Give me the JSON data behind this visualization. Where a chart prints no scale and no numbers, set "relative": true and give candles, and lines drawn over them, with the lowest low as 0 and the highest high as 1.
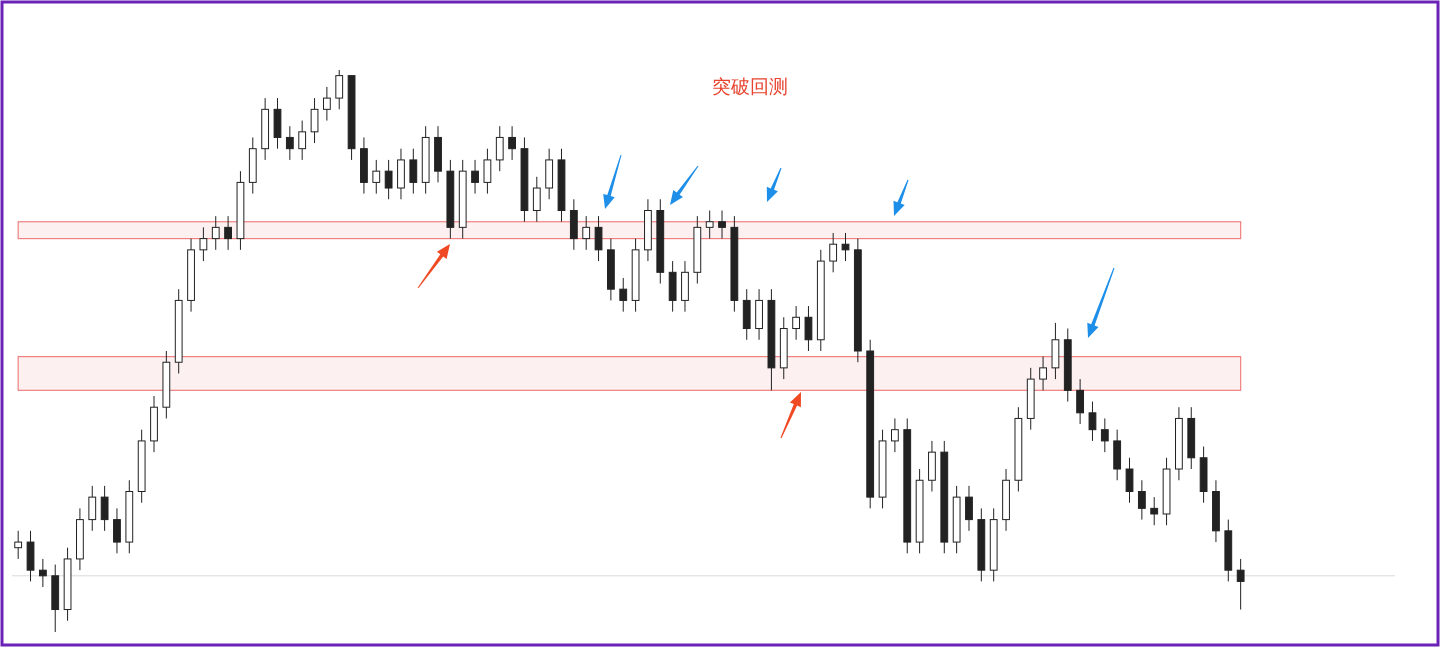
{
  "chart_data": {
    "type": "candlestick",
    "title": "突破回测",
    "relative": true,
    "categories": [
      null,
      null,
      null,
      null,
      null,
      null,
      null,
      null,
      null,
      null,
      null,
      null,
      null,
      null,
      null,
      null,
      null,
      null,
      null,
      null,
      null,
      null,
      null,
      null,
      null,
      null,
      null,
      null,
      null,
      null,
      null,
      null,
      null,
      null,
      null,
      null,
      null,
      null,
      null,
      null,
      null,
      null,
      null,
      null,
      null,
      null,
      null,
      null,
      null,
      null,
      null,
      null,
      null,
      null,
      null,
      null,
      null,
      null,
      null,
      null,
      null,
      null,
      null,
      null,
      null,
      null,
      null,
      null,
      null,
      null,
      null,
      null,
      null,
      null,
      null,
      null,
      null,
      null,
      null,
      null,
      null,
      null,
      null,
      null,
      null,
      null,
      null,
      null,
      null,
      null,
      null,
      null,
      null,
      null,
      null,
      null,
      null,
      null,
      null,
      null
    ],
    "ohlc": [
      [
        0.15,
        0.18,
        0.13,
        0.16
      ],
      [
        0.16,
        0.18,
        0.09,
        0.11
      ],
      [
        0.11,
        0.13,
        0.08,
        0.1
      ],
      [
        0.1,
        0.12,
        0.0,
        0.04
      ],
      [
        0.04,
        0.15,
        0.02,
        0.13
      ],
      [
        0.13,
        0.22,
        0.11,
        0.2
      ],
      [
        0.2,
        0.26,
        0.18,
        0.24
      ],
      [
        0.24,
        0.26,
        0.18,
        0.2
      ],
      [
        0.2,
        0.22,
        0.14,
        0.16
      ],
      [
        0.16,
        0.27,
        0.14,
        0.25
      ],
      [
        0.25,
        0.36,
        0.23,
        0.34
      ],
      [
        0.34,
        0.42,
        0.32,
        0.4
      ],
      [
        0.4,
        0.5,
        0.38,
        0.48
      ],
      [
        0.48,
        0.61,
        0.46,
        0.59
      ],
      [
        0.59,
        0.7,
        0.57,
        0.68
      ],
      [
        0.68,
        0.72,
        0.66,
        0.7
      ],
      [
        0.7,
        0.74,
        0.68,
        0.72
      ],
      [
        0.72,
        0.74,
        0.68,
        0.7
      ],
      [
        0.7,
        0.82,
        0.68,
        0.8
      ],
      [
        0.8,
        0.88,
        0.78,
        0.86
      ],
      [
        0.86,
        0.95,
        0.84,
        0.93
      ],
      [
        0.93,
        0.95,
        0.86,
        0.88
      ],
      [
        0.88,
        0.9,
        0.84,
        0.86
      ],
      [
        0.86,
        0.91,
        0.84,
        0.89
      ],
      [
        0.89,
        0.95,
        0.87,
        0.93
      ],
      [
        0.93,
        0.97,
        0.91,
        0.95
      ],
      [
        0.95,
        1.0,
        0.93,
        0.99
      ],
      [
        0.99,
        0.99,
        0.84,
        0.86
      ],
      [
        0.86,
        0.88,
        0.78,
        0.8
      ],
      [
        0.8,
        0.84,
        0.78,
        0.82
      ],
      [
        0.82,
        0.84,
        0.77,
        0.79
      ],
      [
        0.79,
        0.86,
        0.77,
        0.84
      ],
      [
        0.84,
        0.86,
        0.78,
        0.8
      ],
      [
        0.8,
        0.9,
        0.78,
        0.88
      ],
      [
        0.88,
        0.9,
        0.8,
        0.82
      ],
      [
        0.82,
        0.84,
        0.7,
        0.72
      ],
      [
        0.72,
        0.84,
        0.7,
        0.82
      ],
      [
        0.82,
        0.84,
        0.78,
        0.8
      ],
      [
        0.8,
        0.86,
        0.78,
        0.84
      ],
      [
        0.84,
        0.9,
        0.82,
        0.88
      ],
      [
        0.88,
        0.9,
        0.84,
        0.86
      ],
      [
        0.86,
        0.88,
        0.73,
        0.75
      ],
      [
        0.75,
        0.81,
        0.73,
        0.79
      ],
      [
        0.79,
        0.86,
        0.77,
        0.84
      ],
      [
        0.84,
        0.86,
        0.73,
        0.75
      ],
      [
        0.75,
        0.77,
        0.68,
        0.7
      ],
      [
        0.7,
        0.74,
        0.68,
        0.72
      ],
      [
        0.72,
        0.74,
        0.66,
        0.68
      ],
      [
        0.68,
        0.7,
        0.59,
        0.61
      ],
      [
        0.61,
        0.63,
        0.57,
        0.59
      ],
      [
        0.59,
        0.7,
        0.57,
        0.68
      ],
      [
        0.68,
        0.77,
        0.66,
        0.75
      ],
      [
        0.75,
        0.77,
        0.62,
        0.64
      ],
      [
        0.64,
        0.66,
        0.57,
        0.59
      ],
      [
        0.59,
        0.66,
        0.57,
        0.64
      ],
      [
        0.64,
        0.74,
        0.62,
        0.72
      ],
      [
        0.72,
        0.75,
        0.7,
        0.73
      ],
      [
        0.73,
        0.75,
        0.7,
        0.72
      ],
      [
        0.72,
        0.74,
        0.57,
        0.59
      ],
      [
        0.59,
        0.61,
        0.52,
        0.54
      ],
      [
        0.54,
        0.61,
        0.52,
        0.59
      ],
      [
        0.59,
        0.61,
        0.43,
        0.47
      ],
      [
        0.47,
        0.56,
        0.45,
        0.54
      ],
      [
        0.54,
        0.58,
        0.52,
        0.56
      ],
      [
        0.56,
        0.58,
        0.5,
        0.52
      ],
      [
        0.52,
        0.68,
        0.5,
        0.66
      ],
      [
        0.66,
        0.71,
        0.64,
        0.69
      ],
      [
        0.69,
        0.71,
        0.66,
        0.68
      ],
      [
        0.68,
        0.7,
        0.48,
        0.5
      ],
      [
        0.5,
        0.52,
        0.22,
        0.24
      ],
      [
        0.24,
        0.36,
        0.22,
        0.34
      ],
      [
        0.34,
        0.38,
        0.32,
        0.36
      ],
      [
        0.36,
        0.38,
        0.14,
        0.16
      ],
      [
        0.16,
        0.29,
        0.14,
        0.27
      ],
      [
        0.27,
        0.34,
        0.25,
        0.32
      ],
      [
        0.32,
        0.34,
        0.14,
        0.16
      ],
      [
        0.16,
        0.26,
        0.14,
        0.24
      ],
      [
        0.24,
        0.26,
        0.18,
        0.2
      ],
      [
        0.2,
        0.22,
        0.09,
        0.11
      ],
      [
        0.11,
        0.22,
        0.09,
        0.2
      ],
      [
        0.2,
        0.29,
        0.18,
        0.27
      ],
      [
        0.27,
        0.4,
        0.25,
        0.38
      ],
      [
        0.38,
        0.47,
        0.36,
        0.45
      ],
      [
        0.45,
        0.49,
        0.43,
        0.47
      ],
      [
        0.47,
        0.55,
        0.45,
        0.52
      ],
      [
        0.52,
        0.54,
        0.41,
        0.43
      ],
      [
        0.43,
        0.45,
        0.37,
        0.39
      ],
      [
        0.39,
        0.41,
        0.34,
        0.36
      ],
      [
        0.36,
        0.38,
        0.32,
        0.34
      ],
      [
        0.34,
        0.36,
        0.27,
        0.29
      ],
      [
        0.29,
        0.31,
        0.23,
        0.25
      ],
      [
        0.25,
        0.27,
        0.2,
        0.22
      ],
      [
        0.22,
        0.24,
        0.19,
        0.21
      ],
      [
        0.21,
        0.31,
        0.19,
        0.29
      ],
      [
        0.29,
        0.4,
        0.27,
        0.38
      ],
      [
        0.38,
        0.4,
        0.29,
        0.31
      ],
      [
        0.31,
        0.33,
        0.23,
        0.25
      ],
      [
        0.25,
        0.27,
        0.16,
        0.18
      ],
      [
        0.18,
        0.2,
        0.09,
        0.11
      ],
      [
        0.11,
        0.13,
        0.04,
        0.09
      ]
    ],
    "ref_lines": [
      {
        "axis": "y",
        "value": 0.1,
        "color": "#d9d9d9"
      }
    ],
    "bands": [
      {
        "axis": "y",
        "from": 0.7,
        "to": 0.73,
        "color": "#f08080"
      },
      {
        "axis": "y",
        "from": 0.43,
        "to": 0.49,
        "color": "#f08080"
      }
    ]
  }
}
